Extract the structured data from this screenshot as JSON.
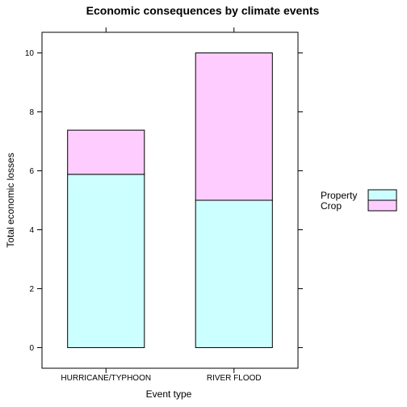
{
  "chart_data": {
    "type": "bar",
    "stacked": true,
    "title": "Economic consequences by climate events",
    "xlabel": "Event type",
    "ylabel": "Total economic losses",
    "categories": [
      "HURRICANE/TYPHOON",
      "RIVER FLOOD"
    ],
    "series": [
      {
        "name": "Property",
        "values": [
          5.88,
          5.0
        ],
        "color": "#CCFFFF"
      },
      {
        "name": "Crop",
        "values": [
          1.5,
          5.0
        ],
        "color": "#FFCCFF"
      }
    ],
    "ylim": [
      -0.7,
      10.7
    ],
    "yticks": [
      0,
      2,
      4,
      6,
      8,
      10
    ],
    "grid": false,
    "legend_position": "right"
  }
}
